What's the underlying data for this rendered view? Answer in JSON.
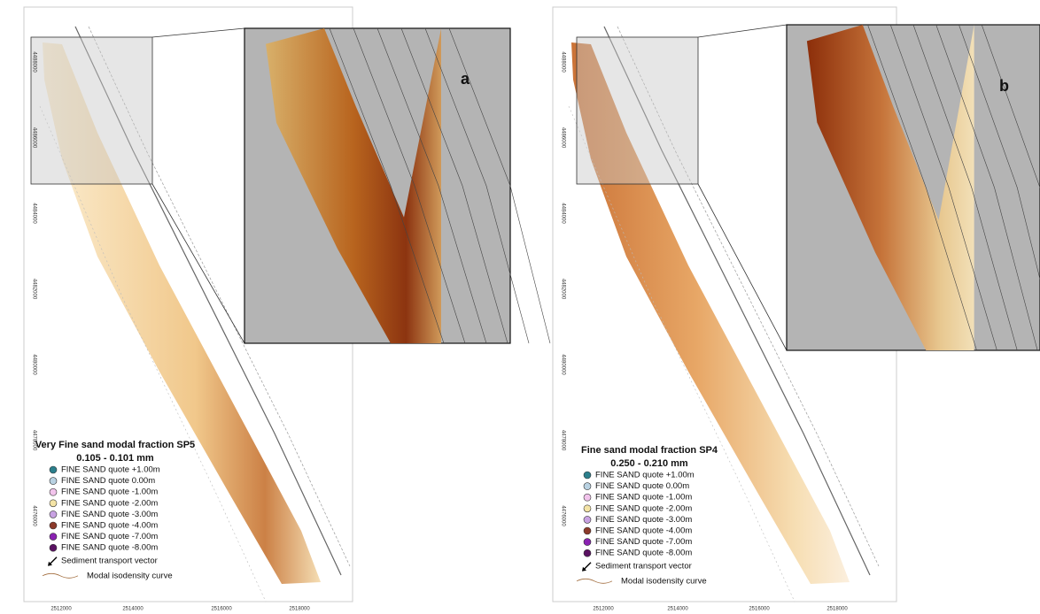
{
  "panels": [
    {
      "label": "a",
      "legend": {
        "title": "Very Fine sand modal fraction SP5",
        "range": "0.105 - 0.101 mm",
        "items": [
          {
            "label": "FINE SAND  quote +1.00m",
            "color": "#2b7f8c"
          },
          {
            "label": "FINE SAND  quote 0.00m",
            "color": "#b9d2e2"
          },
          {
            "label": "FINE SAND  quote -1.00m",
            "color": "#f2c4ec"
          },
          {
            "label": "FINE SAND  quote -2.00m",
            "color": "#f4e4a6"
          },
          {
            "label": "FINE SAND  quote -3.00m",
            "color": "#c8a2e2"
          },
          {
            "label": "FINE SAND  quote -4.00m",
            "color": "#8c3a2a"
          },
          {
            "label": "FINE SAND  quote -7.00m",
            "color": "#8a22b2"
          },
          {
            "label": "FINE SAND  quote -8.00m",
            "color": "#5a1262"
          }
        ],
        "vector": "Sediment transport vector",
        "curve": "Modal isodensity curve"
      },
      "xticks": [
        2512000,
        2514000,
        2516000,
        2518000
      ],
      "yticks": [
        4488000,
        4486000,
        4484000,
        4482000,
        4480000,
        4478000,
        4476000
      ]
    },
    {
      "label": "b",
      "legend": {
        "title": "Fine sand modal fraction SP4",
        "range": "0.250 - 0.210 mm",
        "items": [
          {
            "label": "FINE SAND  quote +1.00m",
            "color": "#2b7f8c"
          },
          {
            "label": "FINE SAND  quote 0.00m",
            "color": "#b9d2e2"
          },
          {
            "label": "FINE SAND  quote -1.00m",
            "color": "#f2c4ec"
          },
          {
            "label": "FINE SAND  quote -2.00m",
            "color": "#f4e4a6"
          },
          {
            "label": "FINE SAND  quote -3.00m",
            "color": "#c8a2e2"
          },
          {
            "label": "FINE SAND  quote -4.00m",
            "color": "#8c3a2a"
          },
          {
            "label": "FINE SAND  quote -7.00m",
            "color": "#8a22b2"
          },
          {
            "label": "FINE SAND  quote -8.00m",
            "color": "#5a1262"
          }
        ],
        "vector": "Sediment transport vector",
        "curve": "Modal isodensity curve"
      },
      "xticks": [
        2512000,
        2514000,
        2516000,
        2518000
      ],
      "yticks": [
        4488000,
        4486000,
        4484000,
        4482000,
        4480000,
        4478000,
        4476000
      ]
    }
  ]
}
